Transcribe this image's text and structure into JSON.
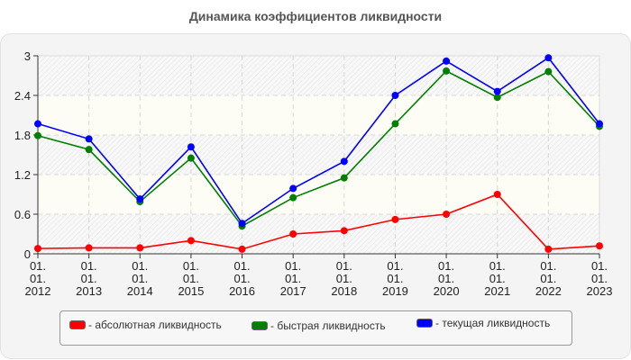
{
  "title": "Динамика коэффициентов ликвидности",
  "chart_data": {
    "type": "line",
    "title": "Динамика коэффициентов ликвидности",
    "xlabel": "",
    "ylabel": "",
    "categories": [
      "01.01.2012",
      "01.01.2013",
      "01.01.2014",
      "01.01.2015",
      "01.01.2016",
      "01.01.2017",
      "01.01.2018",
      "01.01.2019",
      "01.01.2020",
      "01.01.2021",
      "01.01.2022",
      "01.01.2023"
    ],
    "x_tick_lines": [
      [
        "01.",
        "01.",
        "2012"
      ],
      [
        "01.",
        "01.",
        "2013"
      ],
      [
        "01.",
        "01.",
        "2014"
      ],
      [
        "01.",
        "01.",
        "2015"
      ],
      [
        "01.",
        "01.",
        "2016"
      ],
      [
        "01.",
        "01.",
        "2017"
      ],
      [
        "01.",
        "01.",
        "2018"
      ],
      [
        "01.",
        "01.",
        "2019"
      ],
      [
        "01.",
        "01.",
        "2020"
      ],
      [
        "01.",
        "01.",
        "2021"
      ],
      [
        "01.",
        "01.",
        "2022"
      ],
      [
        "01.",
        "01.",
        "2023"
      ]
    ],
    "yticks": [
      "0",
      "0.6",
      "1.2",
      "1.8",
      "2.4",
      "3"
    ],
    "ylim": [
      0,
      3
    ],
    "grid": true,
    "legend_position": "bottom",
    "series": [
      {
        "name": "- абсолютная ликвидность",
        "color": "#ff0000",
        "values": [
          0.08,
          0.09,
          0.09,
          0.2,
          0.07,
          0.3,
          0.35,
          0.52,
          0.6,
          0.9,
          0.07,
          0.12
        ]
      },
      {
        "name": "- быстрая ликвидность",
        "color": "#008000",
        "values": [
          1.79,
          1.58,
          0.79,
          1.45,
          0.42,
          0.85,
          1.15,
          1.97,
          2.77,
          2.37,
          2.76,
          1.93
        ]
      },
      {
        "name": "- текущая ликвидность",
        "color": "#0000ff",
        "values": [
          1.97,
          1.74,
          0.83,
          1.62,
          0.46,
          0.99,
          1.4,
          2.4,
          2.92,
          2.46,
          2.97,
          1.97
        ]
      }
    ]
  }
}
